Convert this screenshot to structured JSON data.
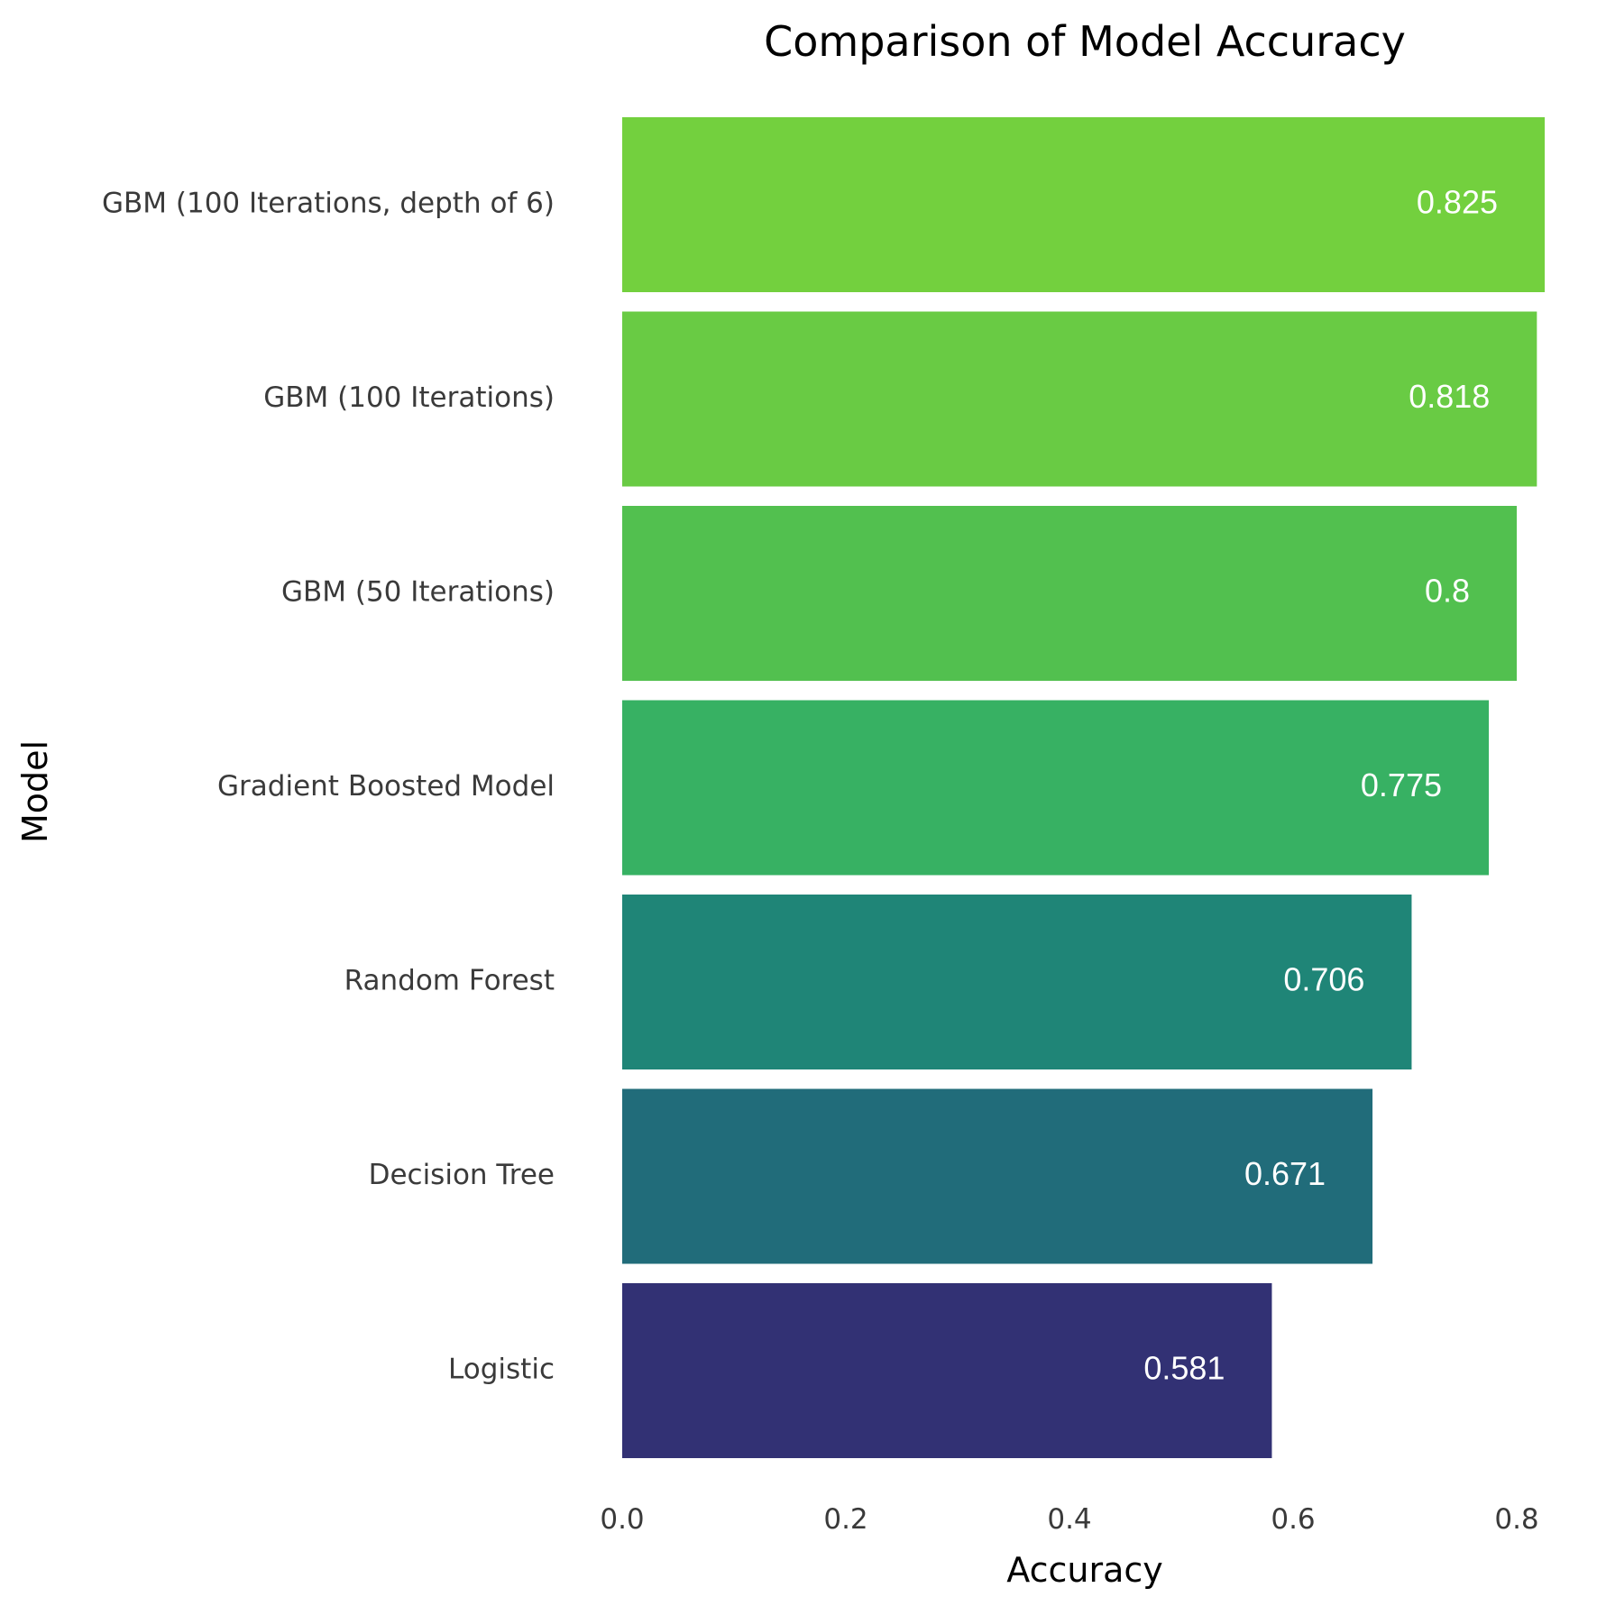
{
  "chart_data": {
    "type": "bar",
    "orientation": "horizontal",
    "title": "Comparison of Model Accuracy",
    "xlabel": "Accuracy",
    "ylabel": "Model",
    "xlim": [
      0,
      0.825
    ],
    "xticks": [
      "0.0",
      "0.2",
      "0.4",
      "0.6",
      "0.8"
    ],
    "xtick_values": [
      0,
      0.2,
      0.4,
      0.6,
      0.8
    ],
    "grid": false,
    "legend": "none",
    "categories": [
      "GBM (100 Iterations, depth of 6)",
      "GBM (100 Iterations)",
      "GBM (50 Iterations)",
      "Gradient Boosted Model",
      "Random Forest",
      "Decision Tree",
      "Logistic"
    ],
    "values": [
      0.825,
      0.818,
      0.8,
      0.775,
      0.706,
      0.671,
      0.581
    ],
    "value_labels": [
      "0.825",
      "0.818",
      "0.8",
      "0.775",
      "0.706",
      "0.671",
      "0.581"
    ],
    "colors": [
      "#73d03e",
      "#69cb44",
      "#52c04f",
      "#37b163",
      "#1f8577",
      "#216c7a",
      "#323174"
    ]
  }
}
